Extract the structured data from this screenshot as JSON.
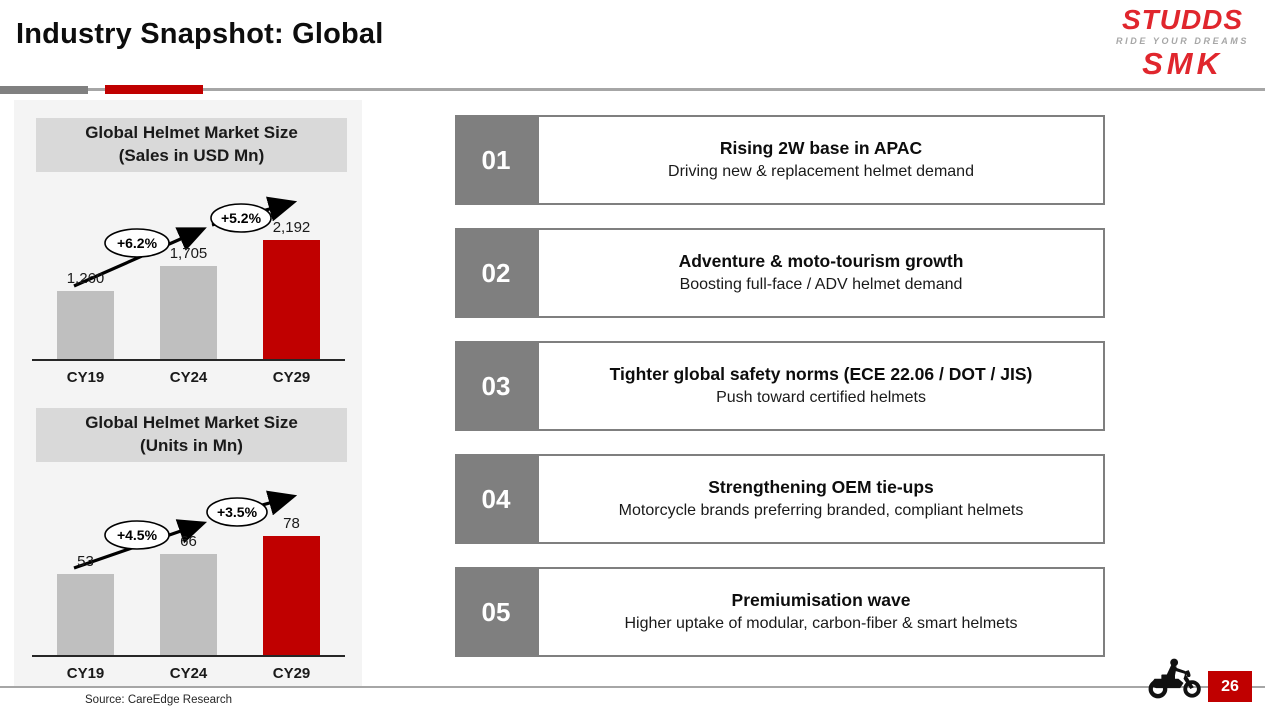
{
  "slide": {
    "title": "Industry Snapshot: Global",
    "page_number": "26",
    "source": "Source: CareEdge Research"
  },
  "logo": {
    "brand": "STUDDS",
    "tagline": "RIDE YOUR DREAMS",
    "sub_brand": "SMK"
  },
  "drivers": [
    {
      "number": "01",
      "title": "Rising 2W base in APAC",
      "subtitle": "Driving new & replacement helmet demand"
    },
    {
      "number": "02",
      "title": "Adventure & moto-tourism growth",
      "subtitle": "Boosting full-face / ADV helmet demand"
    },
    {
      "number": "03",
      "title": "Tighter global safety norms (ECE 22.06 / DOT / JIS)",
      "subtitle": "Push toward certified helmets"
    },
    {
      "number": "04",
      "title": "Strengthening OEM tie-ups",
      "subtitle": "Motorcycle brands preferring branded, compliant helmets"
    },
    {
      "number": "05",
      "title": "Premiumisation wave",
      "subtitle": "Higher uptake of modular, carbon-fiber & smart helmets"
    }
  ],
  "chart_data": [
    {
      "type": "bar",
      "title": "Global Helmet Market Size (Sales in USD Mn)",
      "title_lines": [
        "Global Helmet Market Size",
        "(Sales in USD Mn)"
      ],
      "categories": [
        "CY19",
        "CY24",
        "CY29"
      ],
      "values": [
        1260,
        1705,
        2192
      ],
      "value_labels": [
        "1,260",
        "1,705",
        "2,192"
      ],
      "growth_labels": [
        "+6.2%",
        "+5.2%"
      ],
      "bar_colors": [
        "#bfbfbf",
        "#bfbfbf",
        "#c00000"
      ],
      "ylim": [
        0,
        2192
      ],
      "grid": false,
      "legend": false
    },
    {
      "type": "bar",
      "title": "Global Helmet Market Size (Units in Mn)",
      "title_lines": [
        "Global Helmet Market Size",
        "(Units in Mn)"
      ],
      "categories": [
        "CY19",
        "CY24",
        "CY29"
      ],
      "values": [
        53,
        66,
        78
      ],
      "value_labels": [
        "53",
        "66",
        "78"
      ],
      "growth_labels": [
        "+4.5%",
        "+3.5%"
      ],
      "bar_colors": [
        "#bfbfbf",
        "#bfbfbf",
        "#c00000"
      ],
      "ylim": [
        0,
        78
      ],
      "grid": false,
      "legend": false
    }
  ],
  "colors": {
    "accent_red": "#c00000",
    "bar_gray": "#bfbfbf",
    "number_box_gray": "#7f7f7f",
    "logo_red": "#e0262d"
  }
}
